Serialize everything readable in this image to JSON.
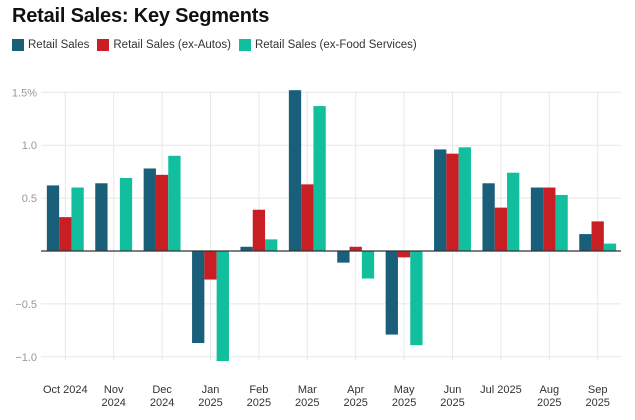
{
  "chart_data": {
    "type": "bar",
    "title": "Retail Sales: Key Segments",
    "xlabel": "",
    "ylabel": "",
    "ylim": [
      -1.0,
      1.5
    ],
    "yticks": [
      1.5,
      1.0,
      0.5,
      0,
      -0.5,
      -1.0
    ],
    "ytick_labels": [
      "1.5%",
      "1.0",
      "0.5",
      "",
      "−0.5",
      "−1.0"
    ],
    "grid": true,
    "legend_position": "top-left",
    "categories": [
      [
        "Oct 2024"
      ],
      [
        "Nov",
        "2024"
      ],
      [
        "Dec",
        "2024"
      ],
      [
        "Jan",
        "2025"
      ],
      [
        "Feb",
        "2025"
      ],
      [
        "Mar",
        "2025"
      ],
      [
        "Apr",
        "2025"
      ],
      [
        "May",
        "2025"
      ],
      [
        "Jun",
        "2025"
      ],
      [
        "Jul 2025"
      ],
      [
        "Aug",
        "2025"
      ],
      [
        "Sep",
        "2025"
      ]
    ],
    "series": [
      {
        "name": "Retail Sales",
        "color": "#1a5f7a",
        "values": [
          0.62,
          0.64,
          0.78,
          -0.87,
          0.04,
          1.52,
          -0.11,
          -0.79,
          0.96,
          0.64,
          0.6,
          0.16
        ]
      },
      {
        "name": "Retail Sales (ex-Autos)",
        "color": "#c91f24",
        "values": [
          0.32,
          0.0,
          0.72,
          -0.27,
          0.39,
          0.63,
          0.04,
          -0.06,
          0.92,
          0.41,
          0.6,
          0.28
        ]
      },
      {
        "name": "Retail Sales (ex-Food Services)",
        "color": "#11bf9f",
        "values": [
          0.6,
          0.69,
          0.9,
          -1.04,
          0.11,
          1.37,
          -0.26,
          -0.89,
          0.98,
          0.74,
          0.53,
          0.07
        ]
      }
    ]
  }
}
